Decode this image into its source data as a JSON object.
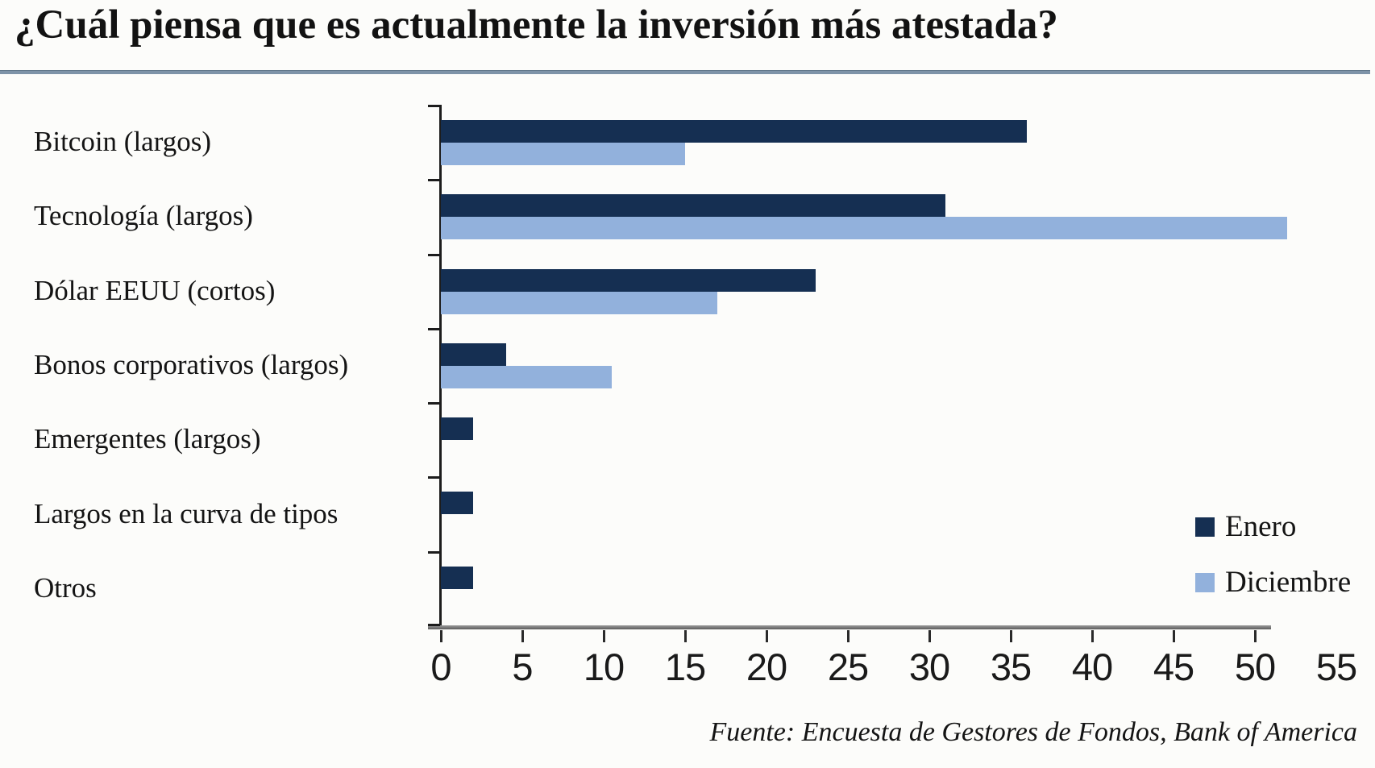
{
  "title": "¿Cuál piensa que es actualmente la inversión más atestada?",
  "source_note": "Fuente: Encuesta de Gestores de Fondos, Bank of America",
  "colors": {
    "enero": "#152f52",
    "diciembre": "#92b1dc",
    "title_rule": "#7e93a8",
    "axis": "#1c1c1c"
  },
  "legend": {
    "position": "inside-right",
    "items": [
      {
        "label": "Enero",
        "color": "#152f52"
      },
      {
        "label": "Diciembre",
        "color": "#92b1dc"
      }
    ]
  },
  "chart_data": {
    "type": "bar",
    "orientation": "horizontal",
    "title": "¿Cuál piensa que es actualmente la inversión más atestada?",
    "categories": [
      "Bitcoin (largos)",
      "Tecnología (largos)",
      "Dólar EEUU (cortos)",
      "Bonos corporativos (largos)",
      "Emergentes (largos)",
      "Largos en la curva de tipos",
      "Otros"
    ],
    "series": [
      {
        "name": "Enero",
        "color": "#152f52",
        "values": [
          36,
          31,
          23,
          4,
          2,
          2,
          2
        ]
      },
      {
        "name": "Diciembre",
        "color": "#92b1dc",
        "values": [
          15,
          52,
          17,
          10.5,
          0,
          0,
          0
        ]
      }
    ],
    "xlabel": "",
    "ylabel": "",
    "xlim": [
      0,
      55
    ],
    "xticks": [
      0,
      5,
      10,
      15,
      20,
      25,
      30,
      35,
      40,
      45,
      50,
      55
    ],
    "xaxis_line_end": 51,
    "grid": false,
    "legend_position": "inside-right"
  }
}
